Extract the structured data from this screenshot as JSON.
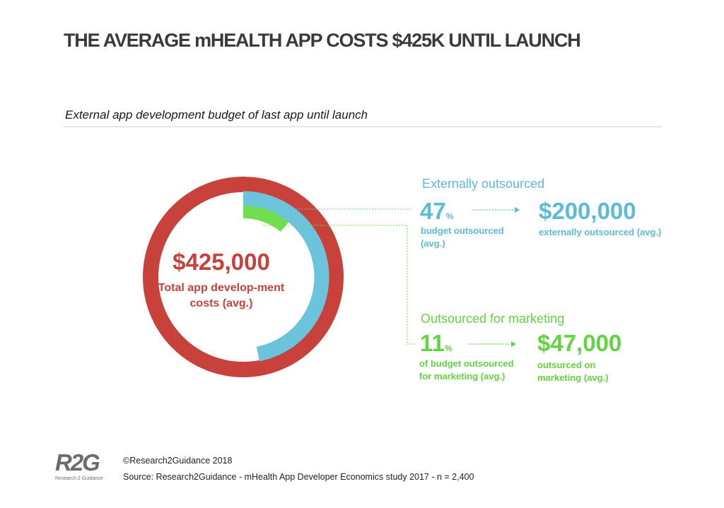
{
  "header": {
    "title": "THE AVERAGE mHEALTH APP COSTS $425K UNTIL LAUNCH",
    "subtitle": "External app development budget of last app until launch"
  },
  "center": {
    "value": "$425,000",
    "label": "Total app develop-ment costs (avg.)"
  },
  "external": {
    "title": "Externally outsourced",
    "pct": "47",
    "pct_unit": "%",
    "pct_note": "budget outsourced (avg.)",
    "value": "$200,000",
    "value_note": "externally outsourced (avg.)"
  },
  "marketing": {
    "title": "Outsourced for marketing",
    "pct": "11",
    "pct_unit": "%",
    "pct_note": "of budget outsourced for marketing (avg.)",
    "value": "$47,000",
    "value_note": "outsurced on marketing (avg.)"
  },
  "chart_data": {
    "type": "pie",
    "total": 425000,
    "series": [
      {
        "name": "Externally outsourced",
        "value": 200000,
        "share": 0.47,
        "color": "#6cc4dc"
      },
      {
        "name": "Outsourced for marketing",
        "value": 47000,
        "share": 0.11,
        "color": "#71de50"
      }
    ],
    "total_color": "#c8413b"
  },
  "footer": {
    "copyright": "©Research2Guidance 2018",
    "source": "Source: Research2Guidance - mHealth App Developer Economics study 2017 - n = 2,400"
  },
  "logo": {
    "mark": "R2G",
    "sub": "Research 2 Guidance"
  }
}
